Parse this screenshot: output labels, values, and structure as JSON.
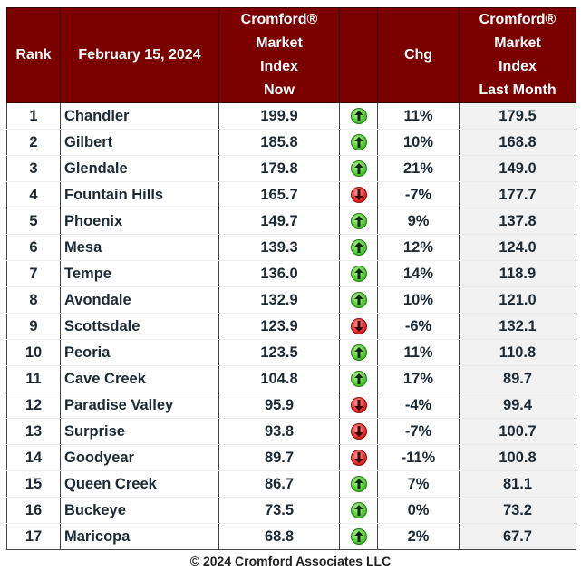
{
  "header": {
    "rank": "Rank",
    "date": "February 15, 2024",
    "index_now": [
      "Cromford®",
      "Market",
      "Index",
      "Now"
    ],
    "chg": "Chg",
    "index_last": [
      "Cromford®",
      "Market",
      "Index",
      "Last Month"
    ]
  },
  "rows": [
    {
      "rank": "1",
      "city": "Chandler",
      "now": "199.9",
      "dir": "up",
      "chg": "11%",
      "last": "179.5"
    },
    {
      "rank": "2",
      "city": "Gilbert",
      "now": "185.8",
      "dir": "up",
      "chg": "10%",
      "last": "168.8"
    },
    {
      "rank": "3",
      "city": "Glendale",
      "now": "179.8",
      "dir": "up",
      "chg": "21%",
      "last": "149.0"
    },
    {
      "rank": "4",
      "city": "Fountain Hills",
      "now": "165.7",
      "dir": "down",
      "chg": "-7%",
      "last": "177.7"
    },
    {
      "rank": "5",
      "city": "Phoenix",
      "now": "149.7",
      "dir": "up",
      "chg": "9%",
      "last": "137.8"
    },
    {
      "rank": "6",
      "city": "Mesa",
      "now": "139.3",
      "dir": "up",
      "chg": "12%",
      "last": "124.0"
    },
    {
      "rank": "7",
      "city": "Tempe",
      "now": "136.0",
      "dir": "up",
      "chg": "14%",
      "last": "118.9"
    },
    {
      "rank": "8",
      "city": "Avondale",
      "now": "132.9",
      "dir": "up",
      "chg": "10%",
      "last": "121.0"
    },
    {
      "rank": "9",
      "city": "Scottsdale",
      "now": "123.9",
      "dir": "down",
      "chg": "-6%",
      "last": "132.1"
    },
    {
      "rank": "10",
      "city": "Peoria",
      "now": "123.5",
      "dir": "up",
      "chg": "11%",
      "last": "110.8"
    },
    {
      "rank": "11",
      "city": "Cave Creek",
      "now": "104.8",
      "dir": "up",
      "chg": "17%",
      "last": "89.7"
    },
    {
      "rank": "12",
      "city": "Paradise Valley",
      "now": "95.9",
      "dir": "down",
      "chg": "-4%",
      "last": "99.4"
    },
    {
      "rank": "13",
      "city": "Surprise",
      "now": "93.8",
      "dir": "down",
      "chg": "-7%",
      "last": "100.7"
    },
    {
      "rank": "14",
      "city": "Goodyear",
      "now": "89.7",
      "dir": "down",
      "chg": "-11%",
      "last": "100.8"
    },
    {
      "rank": "15",
      "city": "Queen Creek",
      "now": "86.7",
      "dir": "up",
      "chg": "7%",
      "last": "81.1"
    },
    {
      "rank": "16",
      "city": "Buckeye",
      "now": "73.5",
      "dir": "up",
      "chg": "0%",
      "last": "73.2"
    },
    {
      "rank": "17",
      "city": "Maricopa",
      "now": "68.8",
      "dir": "up",
      "chg": "2%",
      "last": "67.7"
    }
  ],
  "colors": {
    "header_bg": "#7b0000",
    "header_text": "#ffffff",
    "up": "#3fbf24",
    "down": "#d91c1c",
    "last_col_bg": "#f2f2f2"
  },
  "footer": "© 2024 Cromford Associates LLC"
}
